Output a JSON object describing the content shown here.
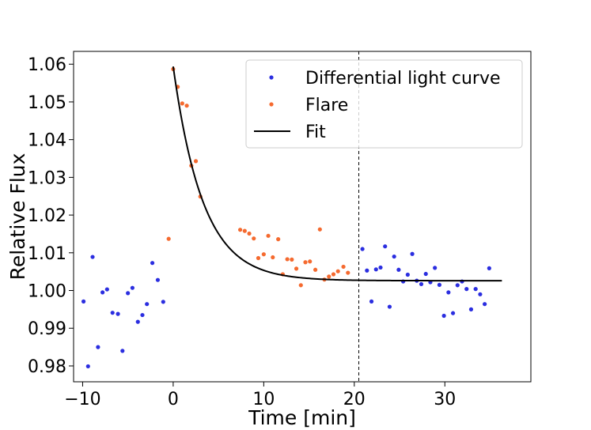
{
  "chart_data": {
    "type": "scatter",
    "xlabel": "Time [min]",
    "ylabel": "Relative Flux",
    "xlim": [
      -11.0,
      39.5
    ],
    "ylim": [
      0.9758,
      1.0634
    ],
    "xticks": [
      -10,
      0,
      10,
      20,
      30
    ],
    "xtick_labels": [
      "−10",
      "0",
      "10",
      "20",
      "30"
    ],
    "yticks": [
      0.98,
      0.99,
      1.0,
      1.01,
      1.02,
      1.03,
      1.04,
      1.05,
      1.06
    ],
    "ytick_labels": [
      "0.98",
      "0.99",
      "1.00",
      "1.01",
      "1.02",
      "1.03",
      "1.04",
      "1.05",
      "1.06"
    ],
    "grid": false,
    "legend_position": "upper-right",
    "vline": {
      "x": 20.5,
      "style": "dashed",
      "color": "#000000"
    },
    "series": [
      {
        "name": "Differential light curve",
        "kind": "scatter",
        "color": "#2b2ee0",
        "points": [
          [
            -9.9,
            0.9971
          ],
          [
            -9.4,
            0.9799
          ],
          [
            -8.9,
            1.0089
          ],
          [
            -8.3,
            0.985
          ],
          [
            -7.8,
            0.9995
          ],
          [
            -7.3,
            1.0003
          ],
          [
            -6.7,
            0.9941
          ],
          [
            -6.1,
            0.9938
          ],
          [
            -5.6,
            0.984
          ],
          [
            -5.0,
            0.9993
          ],
          [
            -4.5,
            1.0007
          ],
          [
            -3.9,
            0.9917
          ],
          [
            -3.4,
            0.9935
          ],
          [
            -2.9,
            0.9964
          ],
          [
            -2.3,
            1.0073
          ],
          [
            -1.7,
            1.0028
          ],
          [
            -1.1,
            0.997
          ],
          [
            20.9,
            1.011
          ],
          [
            21.4,
            1.0053
          ],
          [
            21.9,
            0.9971
          ],
          [
            22.4,
            1.0056
          ],
          [
            22.9,
            1.0061
          ],
          [
            23.4,
            1.0117
          ],
          [
            23.9,
            0.9957
          ],
          [
            24.4,
            1.009
          ],
          [
            24.9,
            1.0055
          ],
          [
            25.4,
            1.0024
          ],
          [
            25.9,
            1.0042
          ],
          [
            26.4,
            1.0097
          ],
          [
            26.9,
            1.0026
          ],
          [
            27.4,
            1.0017
          ],
          [
            27.9,
            1.0044
          ],
          [
            28.4,
            1.0022
          ],
          [
            28.9,
            1.006
          ],
          [
            29.4,
            1.0015
          ],
          [
            29.9,
            0.9933
          ],
          [
            30.4,
            0.9995
          ],
          [
            30.9,
            0.994
          ],
          [
            31.4,
            1.0014
          ],
          [
            31.9,
            1.0024
          ],
          [
            32.4,
            1.0004
          ],
          [
            32.9,
            0.995
          ],
          [
            33.4,
            1.0004
          ],
          [
            33.9,
            0.999
          ],
          [
            34.4,
            0.9964
          ],
          [
            34.9,
            1.0059
          ]
        ]
      },
      {
        "name": "Flare",
        "kind": "scatter",
        "color": "#f56a2f",
        "points": [
          [
            -0.5,
            1.0137
          ],
          [
            0.0,
            1.0587
          ],
          [
            0.5,
            1.054
          ],
          [
            1.0,
            1.0496
          ],
          [
            1.5,
            1.049
          ],
          [
            2.0,
            1.0331
          ],
          [
            2.5,
            1.0343
          ],
          [
            3.0,
            1.0249
          ],
          [
            7.4,
            1.0161
          ],
          [
            7.9,
            1.0158
          ],
          [
            8.4,
            1.0151
          ],
          [
            8.9,
            1.0138
          ],
          [
            9.4,
            1.0086
          ],
          [
            10.0,
            1.0096
          ],
          [
            10.5,
            1.0145
          ],
          [
            11.0,
            1.0088
          ],
          [
            11.6,
            1.0136
          ],
          [
            12.1,
            1.0043
          ],
          [
            12.6,
            1.0083
          ],
          [
            13.1,
            1.0082
          ],
          [
            13.6,
            1.0058
          ],
          [
            14.1,
            1.0014
          ],
          [
            14.6,
            1.0075
          ],
          [
            15.1,
            1.0077
          ],
          [
            15.7,
            1.0055
          ],
          [
            16.2,
            1.0162
          ],
          [
            16.7,
            1.0029
          ],
          [
            17.2,
            1.0037
          ],
          [
            17.7,
            1.0043
          ],
          [
            18.2,
            1.0051
          ],
          [
            18.8,
            1.0063
          ],
          [
            19.3,
            1.0047
          ]
        ]
      },
      {
        "name": "Fit",
        "kind": "line",
        "color": "#000000",
        "model": "exponential decay",
        "params": {
          "baseline": 1.0026,
          "amplitude": 0.0568,
          "tau_min": 3.3,
          "t0": 0.0
        },
        "x_range": [
          0.0,
          36.3
        ]
      }
    ]
  }
}
